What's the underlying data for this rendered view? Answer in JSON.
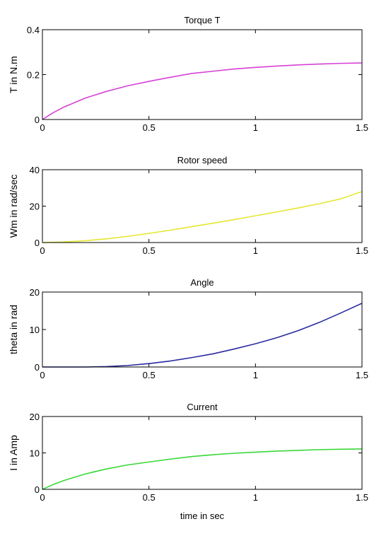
{
  "chart_data": [
    {
      "type": "line",
      "title": "Torque T",
      "xlabel": "",
      "ylabel": "T in N.m",
      "xlim": [
        0,
        1.5
      ],
      "ylim": [
        0,
        0.4
      ],
      "xticks": [
        0,
        0.5,
        1,
        1.5
      ],
      "xtick_labels": [
        "0",
        "0.5",
        "1",
        "1.5"
      ],
      "yticks": [
        0,
        0.2,
        0.4
      ],
      "ytick_labels": [
        "0",
        "0.2",
        "0.4"
      ],
      "grid": false,
      "series": [
        {
          "color": "#d642d6",
          "x": [
            0,
            0.05,
            0.1,
            0.2,
            0.3,
            0.4,
            0.5,
            0.6,
            0.7,
            0.8,
            0.9,
            1.0,
            1.1,
            1.2,
            1.3,
            1.4,
            1.5
          ],
          "y": [
            0,
            0.03,
            0.055,
            0.095,
            0.125,
            0.15,
            0.17,
            0.188,
            0.205,
            0.215,
            0.225,
            0.232,
            0.238,
            0.243,
            0.247,
            0.25,
            0.252
          ]
        }
      ]
    },
    {
      "type": "line",
      "title": "Rotor speed",
      "xlabel": "",
      "ylabel": "Wm in rad/sec",
      "xlim": [
        0,
        1.5
      ],
      "ylim": [
        0,
        40
      ],
      "xticks": [
        0,
        0.5,
        1,
        1.5
      ],
      "xtick_labels": [
        "0",
        "0.5",
        "1",
        "1.5"
      ],
      "yticks": [
        0,
        20,
        40
      ],
      "ytick_labels": [
        "0",
        "20",
        "40"
      ],
      "grid": false,
      "series": [
        {
          "color": "#e6e632",
          "x": [
            0,
            0.1,
            0.2,
            0.3,
            0.4,
            0.5,
            0.6,
            0.7,
            0.8,
            0.9,
            1.0,
            1.1,
            1.2,
            1.3,
            1.4,
            1.5
          ],
          "y": [
            0,
            0.3,
            1.0,
            2.0,
            3.4,
            5.0,
            6.8,
            8.7,
            10.6,
            12.6,
            14.7,
            16.8,
            19.0,
            21.3,
            24.0,
            28.0
          ]
        }
      ]
    },
    {
      "type": "line",
      "title": "Angle",
      "xlabel": "",
      "ylabel": "theta in rad",
      "xlim": [
        0,
        1.5
      ],
      "ylim": [
        0,
        20
      ],
      "xticks": [
        0,
        0.5,
        1,
        1.5
      ],
      "xtick_labels": [
        "0",
        "0.5",
        "1",
        "1.5"
      ],
      "yticks": [
        0,
        10,
        20
      ],
      "ytick_labels": [
        "0",
        "10",
        "20"
      ],
      "grid": false,
      "series": [
        {
          "color": "#2a2aa0",
          "x": [
            0,
            0.1,
            0.2,
            0.3,
            0.4,
            0.5,
            0.6,
            0.7,
            0.8,
            0.9,
            1.0,
            1.1,
            1.2,
            1.3,
            1.4,
            1.5
          ],
          "y": [
            0,
            0,
            0,
            0.1,
            0.4,
            0.9,
            1.6,
            2.5,
            3.5,
            4.8,
            6.2,
            7.8,
            9.7,
            11.9,
            14.4,
            17.0
          ]
        }
      ]
    },
    {
      "type": "line",
      "title": "Current",
      "xlabel": "time in sec",
      "ylabel": "I in Amp",
      "xlim": [
        0,
        1.5
      ],
      "ylim": [
        0,
        20
      ],
      "xticks": [
        0,
        0.5,
        1,
        1.5
      ],
      "xtick_labels": [
        "0",
        "0.5",
        "1",
        "1.5"
      ],
      "yticks": [
        0,
        10,
        20
      ],
      "ytick_labels": [
        "0",
        "10",
        "20"
      ],
      "grid": false,
      "series": [
        {
          "color": "#38d838",
          "x": [
            0,
            0.05,
            0.1,
            0.2,
            0.3,
            0.4,
            0.5,
            0.6,
            0.7,
            0.8,
            0.9,
            1.0,
            1.1,
            1.2,
            1.3,
            1.4,
            1.5
          ],
          "y": [
            0,
            1.3,
            2.4,
            4.2,
            5.6,
            6.7,
            7.5,
            8.3,
            9.0,
            9.5,
            9.9,
            10.2,
            10.5,
            10.7,
            10.9,
            11.0,
            11.1
          ]
        }
      ]
    }
  ]
}
